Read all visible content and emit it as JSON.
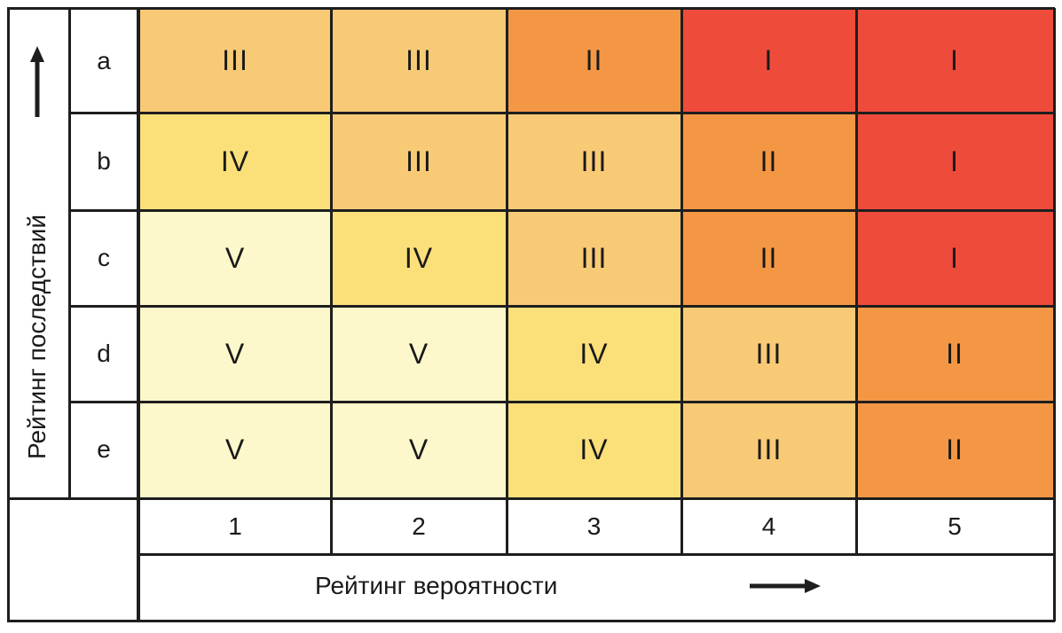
{
  "y_axis": {
    "label": "Рейтинг последствий"
  },
  "x_axis": {
    "label": "Рейтинг вероятности"
  },
  "rows": [
    "a",
    "b",
    "c",
    "d",
    "e"
  ],
  "cols": [
    "1",
    "2",
    "3",
    "4",
    "5"
  ],
  "cells": [
    [
      "III",
      "III",
      "II",
      "I",
      "I"
    ],
    [
      "IV",
      "III",
      "III",
      "II",
      "I"
    ],
    [
      "V",
      "IV",
      "III",
      "II",
      "I"
    ],
    [
      "V",
      "V",
      "IV",
      "III",
      "II"
    ],
    [
      "V",
      "V",
      "IV",
      "III",
      "II"
    ]
  ],
  "category_colors": {
    "I": "#ef4b3b",
    "II": "#f49745",
    "III": "#f9ca76",
    "IV": "#fbe07a",
    "V": "#fdf8cc"
  },
  "line_color": "#1e1e1e"
}
